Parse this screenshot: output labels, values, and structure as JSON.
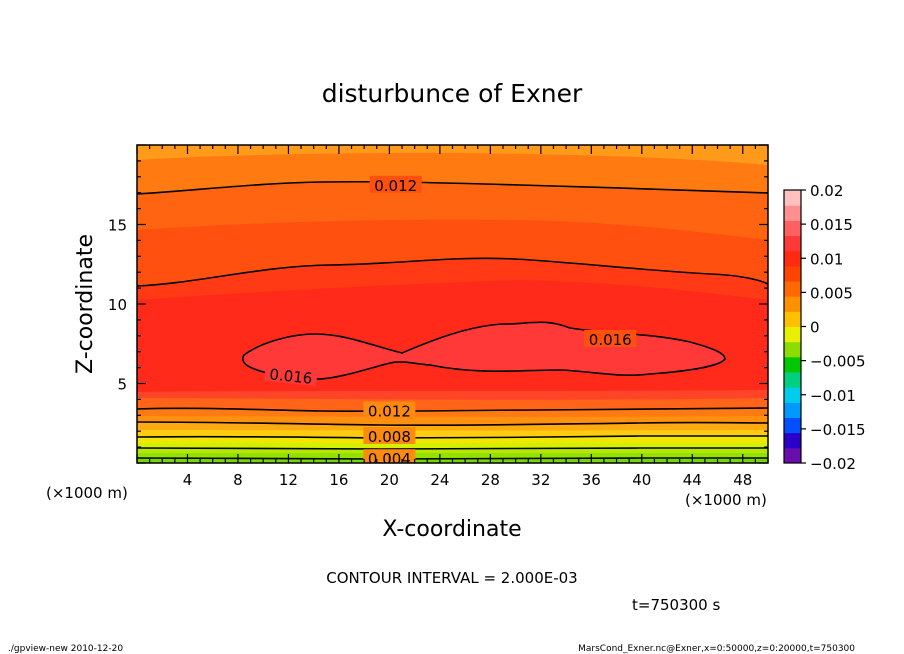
{
  "chart_data": {
    "type": "heatmap",
    "title": "disturbunce of Exner",
    "xlabel": "X-coordinate",
    "ylabel": "Z-coordinate",
    "x_unit_left": "(×1000 m)",
    "x_unit_right": "(×1000 m)",
    "xlim": [
      0,
      50
    ],
    "ylim": [
      0,
      20
    ],
    "x_ticks": [
      4,
      8,
      12,
      16,
      20,
      24,
      28,
      32,
      36,
      40,
      44,
      48
    ],
    "y_ticks": [
      5,
      10,
      15
    ],
    "colorbar": {
      "ticks": [
        0.02,
        0.015,
        0.01,
        0.005,
        0,
        -0.005,
        -0.01,
        -0.015,
        -0.02
      ],
      "tick_labels": [
        "0.02",
        "0.015",
        "0.01",
        "0.005",
        "0",
        "−0.005",
        "−0.01",
        "−0.015",
        "−0.02"
      ],
      "range": [
        -0.02,
        0.02
      ],
      "colors": [
        "#6a0dad",
        "#2a00c8",
        "#0050ff",
        "#0099ff",
        "#00ccee",
        "#00d080",
        "#00c800",
        "#8cdc00",
        "#e6f000",
        "#ffc000",
        "#ff9000",
        "#ff6a00",
        "#ff4400",
        "#ff2a10",
        "#ff3838",
        "#ff6060",
        "#ff9090",
        "#ffc0c0"
      ]
    },
    "contour_labels": [
      {
        "text": "0.012",
        "x": 20.5,
        "z": 17.5
      },
      {
        "text": "0.016",
        "x": 37.5,
        "z": 7.8
      },
      {
        "text": "0.016",
        "x": 12.2,
        "z": 5.5
      },
      {
        "text": "0.012",
        "x": 20,
        "z": 3.3
      },
      {
        "text": "0.008",
        "x": 20,
        "z": 1.7
      },
      {
        "text": "0.004",
        "x": 20,
        "z": 0.3
      }
    ],
    "contour_interval_text": "CONTOUR INTERVAL = 2.000E-03",
    "time_text": "t=750300 s"
  },
  "footer": {
    "left": "./gpview-new  2010-12-20",
    "right": "MarsCond_Exner.nc@Exner,x=0:50000,z=0:20000,t=750300"
  }
}
